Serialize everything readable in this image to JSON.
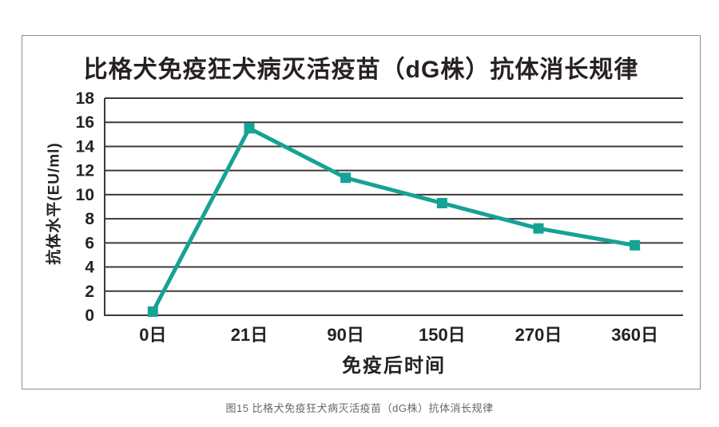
{
  "figure": {
    "title": "比格犬免疫狂犬病灭活疫苗（dG株）抗体消长规律",
    "caption": "图15 比格犬免疫狂犬病灭活疫苗（dG株）抗体消长规律"
  },
  "chart_data": {
    "type": "line",
    "title": "比格犬免疫狂犬病灭活疫苗（dG株）抗体消长规律",
    "categories": [
      "0日",
      "21日",
      "90日",
      "150日",
      "270日",
      "360日"
    ],
    "series": [
      {
        "name": "抗体水平",
        "values": [
          0.3,
          15.5,
          11.4,
          9.3,
          7.2,
          5.8
        ]
      }
    ],
    "xlabel": "免疫后时间",
    "ylabel": "抗体水平(EU/ml)",
    "ylim": [
      0,
      18
    ],
    "ytick_step": 2,
    "grid": "horizontal",
    "legend": "none",
    "marker": "square"
  },
  "colors": {
    "line": "#16a295",
    "grid": "#3d3936",
    "text": "#262120",
    "caption": "#6a6662",
    "border": "#8f8f8f"
  }
}
